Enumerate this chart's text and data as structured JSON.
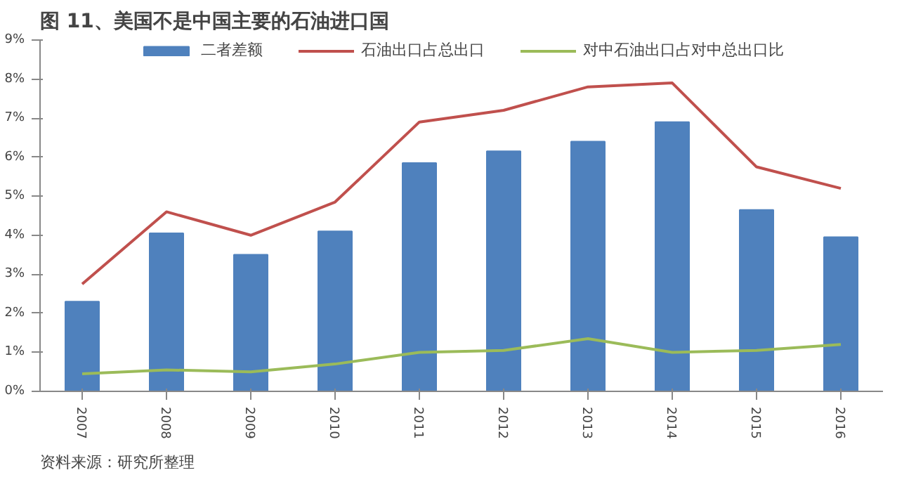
{
  "chart_data": {
    "type": "bar",
    "title": "图 11、美国不是中国主要的石油进口国",
    "categories": [
      "2007",
      "2008",
      "2009",
      "2010",
      "2011",
      "2012",
      "2013",
      "2014",
      "2015",
      "2016"
    ],
    "series": [
      {
        "name": "二者差额",
        "color": "#4f81bd",
        "values": [
          2.3,
          4.05,
          3.5,
          4.1,
          5.85,
          6.15,
          6.4,
          6.9,
          4.65,
          3.95
        ]
      },
      {
        "name": "石油出口占总出口",
        "type": "line",
        "color": "#c0504d",
        "values": [
          2.75,
          4.6,
          4.0,
          4.85,
          6.9,
          7.2,
          7.8,
          7.9,
          5.75,
          5.2
        ]
      },
      {
        "name": "对中石油出口占对中总出口比",
        "type": "line",
        "color": "#9bbb59",
        "values": [
          0.45,
          0.55,
          0.5,
          0.7,
          1.0,
          1.05,
          1.35,
          1.0,
          1.05,
          1.2
        ]
      }
    ],
    "ylim": [
      0,
      9
    ],
    "yticks": [
      {
        "value": 0,
        "label": "0%"
      },
      {
        "value": 1,
        "label": "1%"
      },
      {
        "value": 2,
        "label": "2%"
      },
      {
        "value": 3,
        "label": "3%"
      },
      {
        "value": 4,
        "label": "4%"
      },
      {
        "value": 5,
        "label": "5%"
      },
      {
        "value": 6,
        "label": "6%"
      },
      {
        "value": 7,
        "label": "7%"
      },
      {
        "value": 8,
        "label": "8%"
      },
      {
        "value": 9,
        "label": "9%"
      }
    ],
    "grid": false,
    "legend": "top",
    "annotations": [
      "资料来源：研究所整理"
    ]
  }
}
